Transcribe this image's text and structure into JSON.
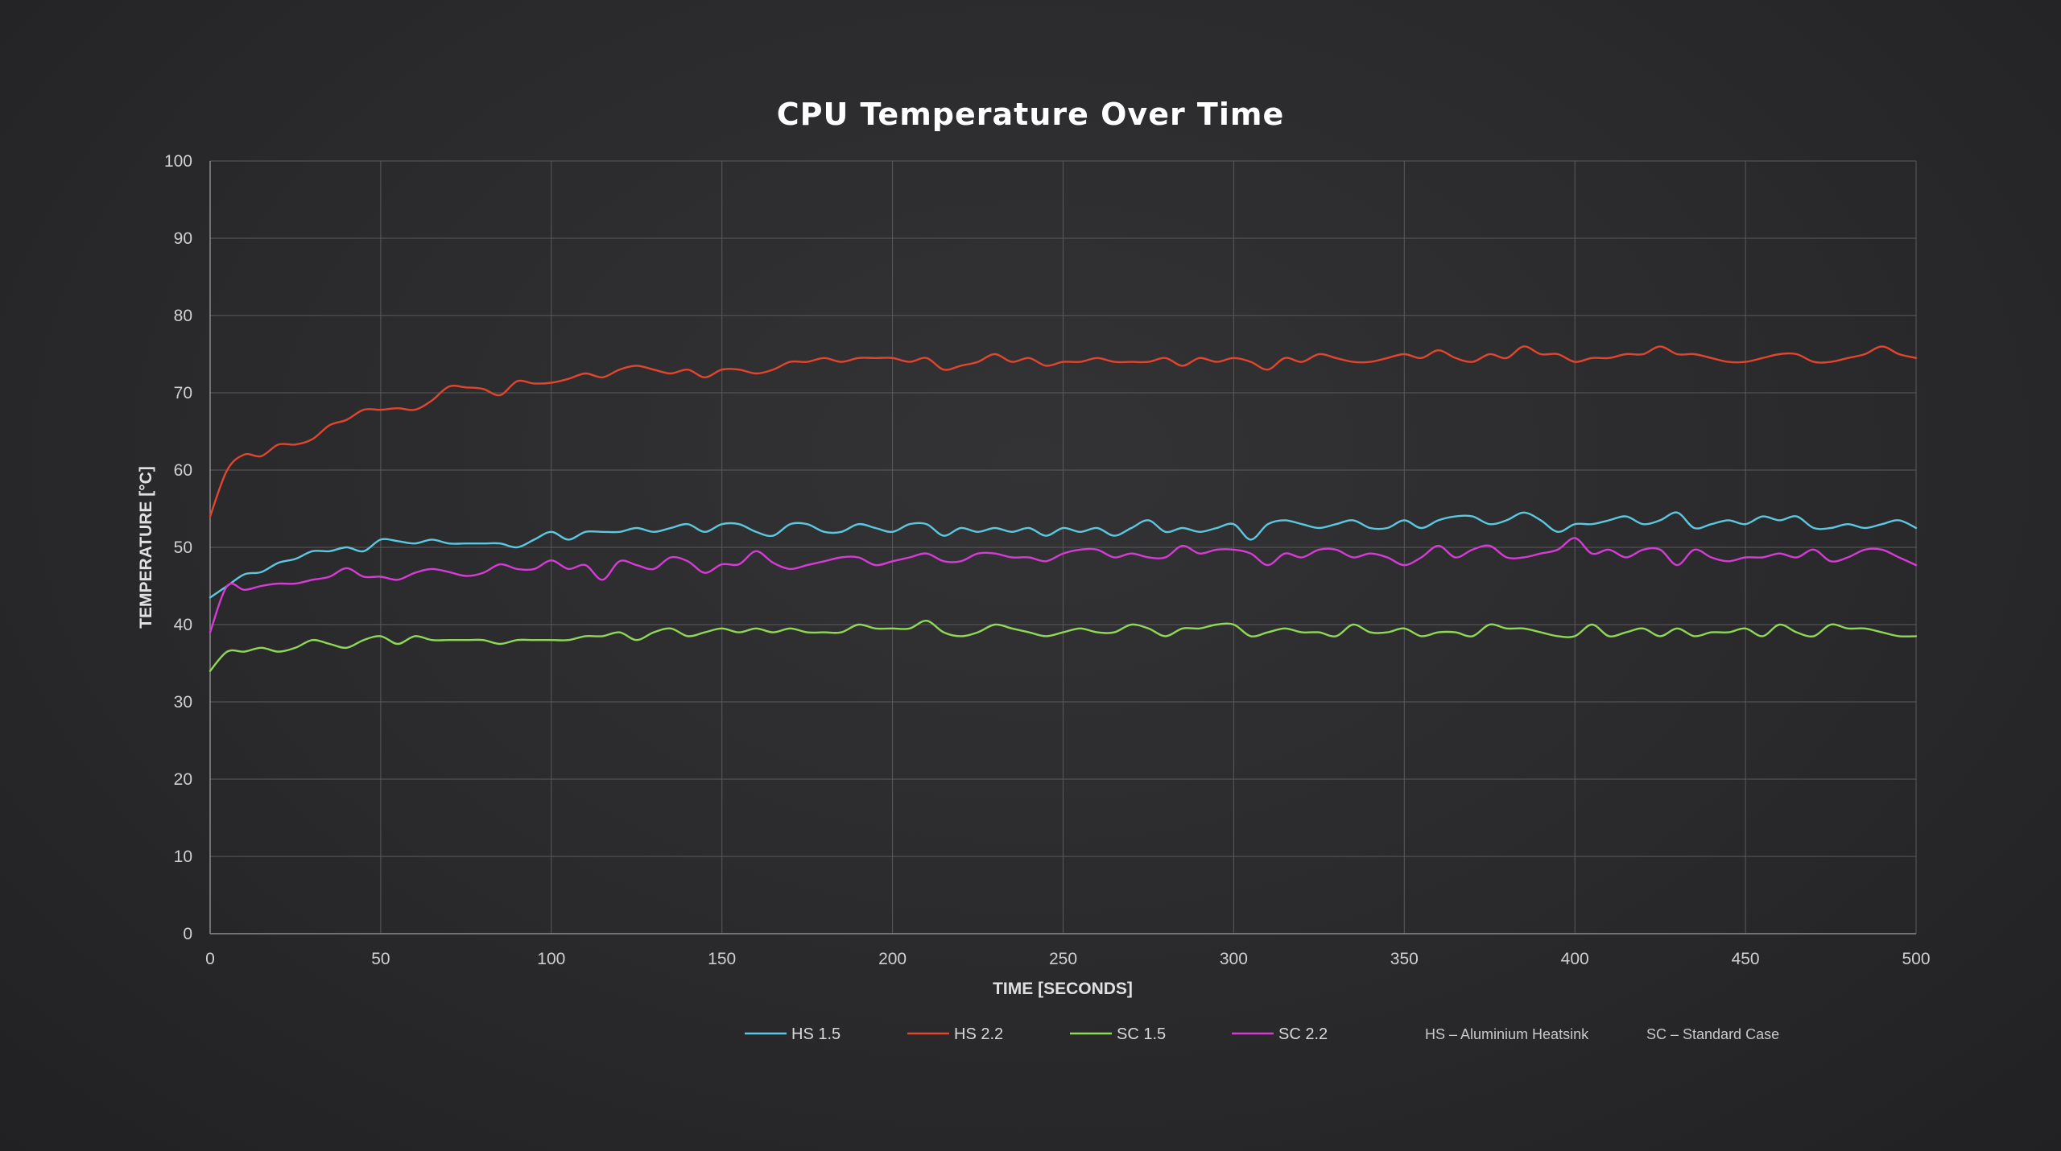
{
  "chart_data": {
    "type": "line",
    "title": "CPU Temperature Over Time",
    "xlabel": "TIME [SECONDS]",
    "ylabel": "TEMPERATURE [°C]",
    "xlim": [
      0,
      500
    ],
    "ylim": [
      0,
      100
    ],
    "xticks": [
      0,
      50,
      100,
      150,
      200,
      250,
      300,
      350,
      400,
      450,
      500
    ],
    "yticks": [
      0,
      10,
      20,
      30,
      40,
      50,
      60,
      70,
      80,
      90,
      100
    ],
    "grid": true,
    "legend_position": "bottom",
    "notes": [
      "HS – Aluminium Heatsink",
      "SC – Standard Case"
    ],
    "series": [
      {
        "name": "HS 1.5",
        "color": "#5bc8e0",
        "x": [
          0,
          5,
          10,
          15,
          20,
          25,
          30,
          35,
          40,
          45,
          50,
          55,
          60,
          65,
          70,
          75,
          80,
          85,
          90,
          95,
          100,
          105,
          110,
          115,
          120,
          125,
          130,
          135,
          140,
          145,
          150,
          155,
          160,
          165,
          170,
          175,
          180,
          185,
          190,
          195,
          200,
          205,
          210,
          215,
          220,
          225,
          230,
          235,
          240,
          245,
          250,
          255,
          260,
          265,
          270,
          275,
          280,
          285,
          290,
          295,
          300,
          305,
          310,
          315,
          320,
          325,
          330,
          335,
          340,
          345,
          350,
          355,
          360,
          365,
          370,
          375,
          380,
          385,
          390,
          395,
          400,
          405,
          410,
          415,
          420,
          425,
          430,
          435,
          440,
          445,
          450,
          455,
          460,
          465,
          470,
          475,
          480,
          485,
          490,
          495,
          500
        ],
        "y": [
          43.5,
          45,
          46.5,
          46.8,
          48,
          48.5,
          49.5,
          49.5,
          50,
          49.5,
          51,
          50.8,
          50.5,
          51,
          50.5,
          50.5,
          50.5,
          50.5,
          50,
          51,
          52,
          51,
          52,
          52,
          52,
          52.5,
          52,
          52.5,
          53,
          52,
          53,
          53,
          52,
          51.5,
          53,
          53,
          52,
          52,
          53,
          52.5,
          52,
          53,
          53,
          51.5,
          52.5,
          52,
          52.5,
          52,
          52.5,
          51.5,
          52.5,
          52,
          52.5,
          51.5,
          52.5,
          53.5,
          52,
          52.5,
          52,
          52.5,
          53,
          51,
          53,
          53.5,
          53,
          52.5,
          53,
          53.5,
          52.5,
          52.5,
          53.5,
          52.5,
          53.5,
          54,
          54,
          53,
          53.5,
          54.5,
          53.5,
          52,
          53,
          53,
          53.5,
          54,
          53,
          53.5,
          54.5,
          52.5,
          53,
          53.5,
          53,
          54,
          53.5,
          54,
          52.5,
          52.5,
          53,
          52.5,
          53,
          53.5,
          52.5
        ]
      },
      {
        "name": "HS 2.2",
        "color": "#e2452e",
        "x": [
          0,
          5,
          10,
          15,
          20,
          25,
          30,
          35,
          40,
          45,
          50,
          55,
          60,
          65,
          70,
          75,
          80,
          85,
          90,
          95,
          100,
          105,
          110,
          115,
          120,
          125,
          130,
          135,
          140,
          145,
          150,
          155,
          160,
          165,
          170,
          175,
          180,
          185,
          190,
          195,
          200,
          205,
          210,
          215,
          220,
          225,
          230,
          235,
          240,
          245,
          250,
          255,
          260,
          265,
          270,
          275,
          280,
          285,
          290,
          295,
          300,
          305,
          310,
          315,
          320,
          325,
          330,
          335,
          340,
          345,
          350,
          355,
          360,
          365,
          370,
          375,
          380,
          385,
          390,
          395,
          400,
          405,
          410,
          415,
          420,
          425,
          430,
          435,
          440,
          445,
          450,
          455,
          460,
          465,
          470,
          475,
          480,
          485,
          490,
          495,
          500
        ],
        "y": [
          54,
          60,
          62,
          61.8,
          63.3,
          63.3,
          64,
          65.8,
          66.5,
          67.8,
          67.8,
          68,
          67.8,
          69,
          70.8,
          70.7,
          70.5,
          69.7,
          71.5,
          71.2,
          71.3,
          71.8,
          72.5,
          72,
          73,
          73.5,
          73,
          72.5,
          73,
          72,
          73,
          73,
          72.5,
          73,
          74,
          74,
          74.5,
          74,
          74.5,
          74.5,
          74.5,
          74,
          74.5,
          73,
          73.5,
          74,
          75,
          74,
          74.5,
          73.5,
          74,
          74,
          74.5,
          74,
          74,
          74,
          74.5,
          73.5,
          74.5,
          74,
          74.5,
          74,
          73,
          74.5,
          74,
          75,
          74.5,
          74,
          74,
          74.5,
          75,
          74.5,
          75.5,
          74.5,
          74,
          75,
          74.5,
          76,
          75,
          75,
          74,
          74.5,
          74.5,
          75,
          75,
          76,
          75,
          75,
          74.5,
          74,
          74,
          74.5,
          75,
          75,
          74,
          74,
          74.5,
          75,
          76,
          75,
          74.5
        ]
      },
      {
        "name": "SC 1.5",
        "color": "#8ed855",
        "x": [
          0,
          5,
          10,
          15,
          20,
          25,
          30,
          35,
          40,
          45,
          50,
          55,
          60,
          65,
          70,
          75,
          80,
          85,
          90,
          95,
          100,
          105,
          110,
          115,
          120,
          125,
          130,
          135,
          140,
          145,
          150,
          155,
          160,
          165,
          170,
          175,
          180,
          185,
          190,
          195,
          200,
          205,
          210,
          215,
          220,
          225,
          230,
          235,
          240,
          245,
          250,
          255,
          260,
          265,
          270,
          275,
          280,
          285,
          290,
          295,
          300,
          305,
          310,
          315,
          320,
          325,
          330,
          335,
          340,
          345,
          350,
          355,
          360,
          365,
          370,
          375,
          380,
          385,
          390,
          395,
          400,
          405,
          410,
          415,
          420,
          425,
          430,
          435,
          440,
          445,
          450,
          455,
          460,
          465,
          470,
          475,
          480,
          485,
          490,
          495,
          500
        ],
        "y": [
          34,
          36.5,
          36.5,
          37,
          36.5,
          37,
          38,
          37.5,
          37,
          38,
          38.5,
          37.5,
          38.5,
          38,
          38,
          38,
          38,
          37.5,
          38,
          38,
          38,
          38,
          38.5,
          38.5,
          39,
          38,
          39,
          39.5,
          38.5,
          39,
          39.5,
          39,
          39.5,
          39,
          39.5,
          39,
          39,
          39,
          40,
          39.5,
          39.5,
          39.5,
          40.5,
          39,
          38.5,
          39,
          40,
          39.5,
          39,
          38.5,
          39,
          39.5,
          39,
          39,
          40,
          39.5,
          38.5,
          39.5,
          39.5,
          40,
          40,
          38.5,
          39,
          39.5,
          39,
          39,
          38.5,
          40,
          39,
          39,
          39.5,
          38.5,
          39,
          39,
          38.5,
          40,
          39.5,
          39.5,
          39,
          38.5,
          38.5,
          40,
          38.5,
          39,
          39.5,
          38.5,
          39.5,
          38.5,
          39,
          39,
          39.5,
          38.5,
          40,
          39,
          38.5,
          40,
          39.5,
          39.5,
          39,
          38.5,
          38.5
        ]
      },
      {
        "name": "SC 2.2",
        "color": "#d63bd6",
        "x": [
          0,
          5,
          10,
          15,
          20,
          25,
          30,
          35,
          40,
          45,
          50,
          55,
          60,
          65,
          70,
          75,
          80,
          85,
          90,
          95,
          100,
          105,
          110,
          115,
          120,
          125,
          130,
          135,
          140,
          145,
          150,
          155,
          160,
          165,
          170,
          175,
          180,
          185,
          190,
          195,
          200,
          205,
          210,
          215,
          220,
          225,
          230,
          235,
          240,
          245,
          250,
          255,
          260,
          265,
          270,
          275,
          280,
          285,
          290,
          295,
          300,
          305,
          310,
          315,
          320,
          325,
          330,
          335,
          340,
          345,
          350,
          355,
          360,
          365,
          370,
          375,
          380,
          385,
          390,
          395,
          400,
          405,
          410,
          415,
          420,
          425,
          430,
          435,
          440,
          445,
          450,
          455,
          460,
          465,
          470,
          475,
          480,
          485,
          490,
          495,
          500
        ],
        "y": [
          39,
          45,
          44.5,
          45,
          45.3,
          45.3,
          45.8,
          46.2,
          47.3,
          46.2,
          46.2,
          45.8,
          46.7,
          47.2,
          46.8,
          46.3,
          46.7,
          47.8,
          47.2,
          47.2,
          48.3,
          47.2,
          47.7,
          45.8,
          48.2,
          47.7,
          47.2,
          48.7,
          48.2,
          46.7,
          47.8,
          47.8,
          49.5,
          48,
          47.2,
          47.7,
          48.2,
          48.7,
          48.7,
          47.7,
          48.2,
          48.7,
          49.2,
          48.2,
          48.2,
          49.2,
          49.2,
          48.7,
          48.7,
          48.2,
          49.2,
          49.7,
          49.7,
          48.7,
          49.2,
          48.7,
          48.7,
          50.2,
          49.2,
          49.7,
          49.7,
          49.2,
          47.7,
          49.2,
          48.7,
          49.7,
          49.7,
          48.7,
          49.2,
          48.7,
          47.7,
          48.7,
          50.2,
          48.7,
          49.7,
          50.2,
          48.7,
          48.7,
          49.2,
          49.7,
          51.2,
          49.2,
          49.7,
          48.7,
          49.7,
          49.7,
          47.7,
          49.7,
          48.7,
          48.2,
          48.7,
          48.7,
          49.2,
          48.7,
          49.7,
          48.2,
          48.7,
          49.7,
          49.7,
          48.7,
          47.7
        ]
      }
    ]
  }
}
